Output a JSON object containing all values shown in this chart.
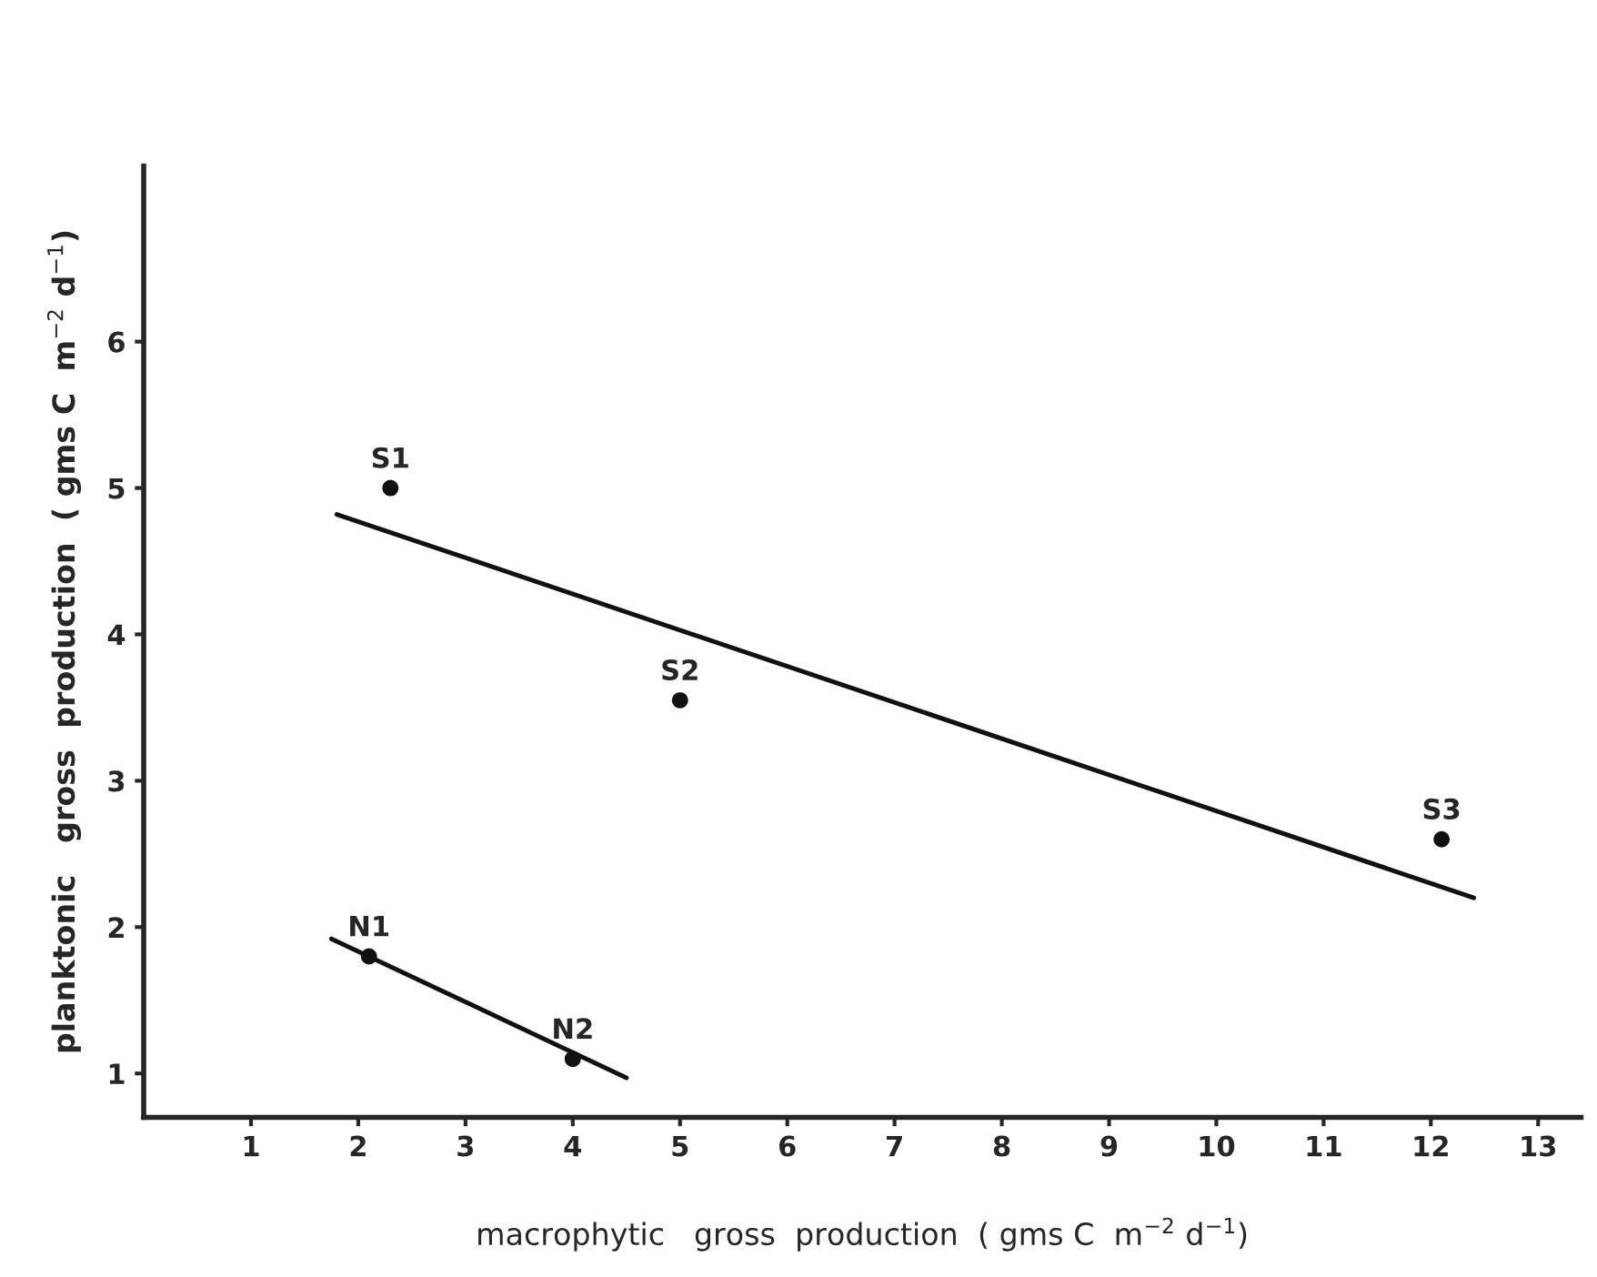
{
  "chart_data": {
    "type": "scatter",
    "xlabel": "macrophytic   gross  production  ( gms C  m$^{−2}$ d$^{−1}$)",
    "ylabel": "planktonic   gross  production  ( gms C  m$^{−2}$ d$^{−1}$)",
    "xlim": [
      0,
      13.4
    ],
    "ylim": [
      0.7,
      7.2
    ],
    "xticks": [
      1,
      2,
      3,
      4,
      5,
      6,
      7,
      8,
      9,
      10,
      11,
      12,
      13
    ],
    "yticks": [
      1,
      2,
      3,
      4,
      5,
      6
    ],
    "grid": false,
    "legend": false,
    "series": [
      {
        "marker": "circle",
        "color": "#111111",
        "x": [
          2.3,
          5.0,
          12.1,
          2.1,
          4.0
        ],
        "values": [
          5.0,
          3.55,
          2.6,
          1.8,
          1.1
        ]
      },
      {
        "type": "line",
        "color": "#111111",
        "line_style": "solid",
        "x": [
          1.8,
          12.4
        ],
        "values": [
          4.82,
          2.2
        ]
      },
      {
        "type": "line",
        "color": "#111111",
        "line_style": "solid",
        "x": [
          1.75,
          4.5
        ],
        "values": [
          1.92,
          0.97
        ]
      }
    ],
    "annotations": [
      {
        "text": "S1",
        "x": 2.3,
        "y": 5.0
      },
      {
        "text": "S2",
        "x": 5.0,
        "y": 3.55
      },
      {
        "text": "S3",
        "x": 12.1,
        "y": 2.6
      },
      {
        "text": "N1",
        "x": 2.1,
        "y": 1.8
      },
      {
        "text": "N2",
        "x": 4.0,
        "y": 1.1
      }
    ]
  }
}
